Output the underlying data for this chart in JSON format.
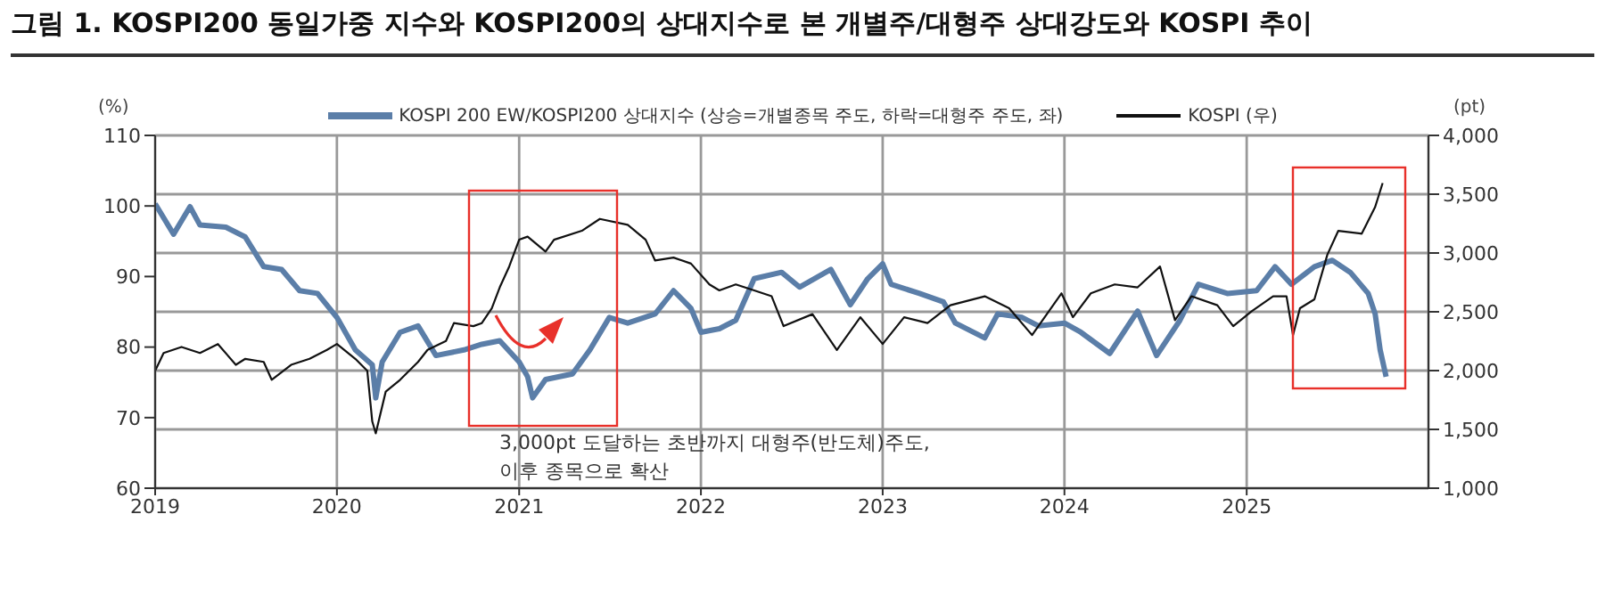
{
  "chart_data": {
    "type": "line",
    "title": "그림 1. KOSPI200 동일가중 지수와 KOSPI200의 상대지수로 본 개별주/대형주 상대강도와 KOSPI 추이",
    "ylabel": "(%)",
    "y2label": "(pt)",
    "annotations": [
      "3,000pt 도달하는 초반까지 대형주(반도체)주도,\n이후 종목으로 확산"
    ],
    "xlim": [
      "2019-01-01",
      "2026-01-01"
    ],
    "xticks": [
      {
        "value": "2019",
        "label": "2019"
      },
      {
        "value": "2020",
        "label": "2020"
      },
      {
        "value": "2021",
        "label": "2021"
      },
      {
        "value": "2022",
        "label": "2022"
      },
      {
        "value": "2023",
        "label": "2023"
      },
      {
        "value": "2024",
        "label": "2024"
      },
      {
        "value": "2025",
        "label": "2025"
      }
    ],
    "ylim": [
      60,
      110
    ],
    "yticks": [
      60,
      70,
      80,
      90,
      100,
      110
    ],
    "y2lim": [
      1000,
      4000
    ],
    "y2ticks": [
      {
        "value": 1000,
        "label": "1,000"
      },
      {
        "value": 1500,
        "label": "1,500"
      },
      {
        "value": 2000,
        "label": "2,000"
      },
      {
        "value": 2500,
        "label": "2,500"
      },
      {
        "value": 3000,
        "label": "3,000"
      },
      {
        "value": 3500,
        "label": "3,500"
      },
      {
        "value": 4000,
        "label": "4,000"
      }
    ],
    "grid": true,
    "legend": "top",
    "marker": "none",
    "line_style": "solid",
    "series": [
      {
        "name": "KOSPI 200 EW/KOSPI200 상대지수 (상승=개별종목 주도, 하락=대형주 주도, 좌)",
        "color": "#5b7ea8",
        "x": [
          "2019-01-01",
          "2019-02-07",
          "2019-03-12",
          "2019-04-01",
          "2019-05-23",
          "2019-07-01",
          "2019-08-07",
          "2019-09-12",
          "2019-10-18",
          "2019-11-23",
          "2020-01-01",
          "2020-02-07",
          "2020-03-12",
          "2020-03-19",
          "2020-04-01",
          "2020-05-07",
          "2020-06-12",
          "2020-07-18",
          "2020-09-12",
          "2020-10-18",
          "2020-11-23",
          "2021-01-01",
          "2021-01-18",
          "2021-01-28",
          "2021-02-23",
          "2021-04-18",
          "2021-05-23",
          "2021-07-01",
          "2021-08-07",
          "2021-10-01",
          "2021-11-07",
          "2021-12-12",
          "2022-01-01",
          "2022-02-07",
          "2022-03-12",
          "2022-04-18",
          "2022-06-12",
          "2022-07-18",
          "2022-09-19",
          "2022-10-28",
          "2022-12-02",
          "2023-01-01",
          "2023-01-18",
          "2023-03-16",
          "2023-05-03",
          "2023-05-27",
          "2023-07-25",
          "2023-08-20",
          "2023-10-08",
          "2023-11-10",
          "2024-01-01",
          "2024-02-03",
          "2024-04-01",
          "2024-05-27",
          "2024-07-04",
          "2024-08-20",
          "2024-09-26",
          "2024-11-23",
          "2025-01-21",
          "2025-02-27",
          "2025-04-01",
          "2025-05-17",
          "2025-06-22",
          "2025-07-28",
          "2025-09-02",
          "2025-09-16",
          "2025-09-26",
          "2025-10-08"
        ],
        "values": [
          100.3,
          96,
          99.9,
          97.3,
          97,
          95.6,
          91.4,
          91,
          88,
          87.6,
          84.2,
          79.6,
          77.5,
          72.8,
          77.9,
          82.1,
          83,
          78.8,
          79.6,
          80.4,
          80.9,
          77.9,
          75.8,
          72.8,
          75.4,
          76.2,
          79.6,
          84.2,
          83.4,
          84.7,
          88,
          85.5,
          82.1,
          82.6,
          83.8,
          89.7,
          90.6,
          88.5,
          91,
          86,
          89.7,
          91.8,
          88.9,
          87.6,
          86.4,
          83.4,
          81.3,
          84.7,
          84.2,
          83,
          83.4,
          82.1,
          79.1,
          85.1,
          78.8,
          83.8,
          88.9,
          87.6,
          88,
          91.4,
          88.9,
          91.4,
          92.3,
          90.6,
          87.6,
          84.7,
          79.6,
          75.8
        ]
      },
      {
        "name": "KOSPI (우)",
        "color": "#111111",
        "axis": "y2",
        "x": [
          "2019-01-01",
          "2019-01-18",
          "2019-02-23",
          "2019-04-01",
          "2019-05-07",
          "2019-06-12",
          "2019-07-01",
          "2019-08-07",
          "2019-08-23",
          "2019-10-01",
          "2019-11-07",
          "2019-12-12",
          "2020-01-01",
          "2020-02-07",
          "2020-03-02",
          "2020-03-12",
          "2020-03-19",
          "2020-04-08",
          "2020-05-07",
          "2020-06-12",
          "2020-07-01",
          "2020-08-07",
          "2020-08-23",
          "2020-10-01",
          "2020-10-18",
          "2020-11-07",
          "2020-11-23",
          "2020-12-12",
          "2021-01-01",
          "2021-01-18",
          "2021-02-23",
          "2021-03-12",
          "2021-05-07",
          "2021-06-12",
          "2021-08-07",
          "2021-09-12",
          "2021-10-01",
          "2021-11-07",
          "2021-12-12",
          "2022-01-18",
          "2022-02-07",
          "2022-03-12",
          "2022-04-18",
          "2022-05-23",
          "2022-06-16",
          "2022-08-13",
          "2022-10-01",
          "2022-11-17",
          "2023-01-01",
          "2023-02-13",
          "2023-04-01",
          "2023-05-17",
          "2023-07-25",
          "2023-09-12",
          "2023-10-28",
          "2023-12-26",
          "2024-01-18",
          "2024-02-23",
          "2024-04-11",
          "2024-05-27",
          "2024-07-11",
          "2024-08-10",
          "2024-09-12",
          "2024-11-03",
          "2024-12-05",
          "2025-01-11",
          "2025-02-23",
          "2025-03-22",
          "2025-04-04",
          "2025-04-18",
          "2025-05-17",
          "2025-06-12",
          "2025-07-04",
          "2025-08-20",
          "2025-09-16",
          "2025-10-01"
        ],
        "values": [
          1998,
          2150,
          2201,
          2150,
          2226,
          2049,
          2100,
          2074,
          1922,
          2049,
          2100,
          2176,
          2226,
          2100,
          1998,
          1568,
          1466,
          1821,
          1922,
          2074,
          2176,
          2252,
          2404,
          2378,
          2404,
          2530,
          2708,
          2885,
          3113,
          3139,
          3012,
          3113,
          3189,
          3290,
          3240,
          3113,
          2936,
          2961,
          2910,
          2733,
          2682,
          2733,
          2682,
          2632,
          2378,
          2480,
          2176,
          2454,
          2226,
          2454,
          2404,
          2556,
          2632,
          2530,
          2302,
          2657,
          2454,
          2657,
          2733,
          2708,
          2885,
          2429,
          2632,
          2556,
          2378,
          2505,
          2632,
          2632,
          2302,
          2530,
          2606,
          2986,
          3189,
          3164,
          3392,
          3595
        ]
      }
    ]
  }
}
